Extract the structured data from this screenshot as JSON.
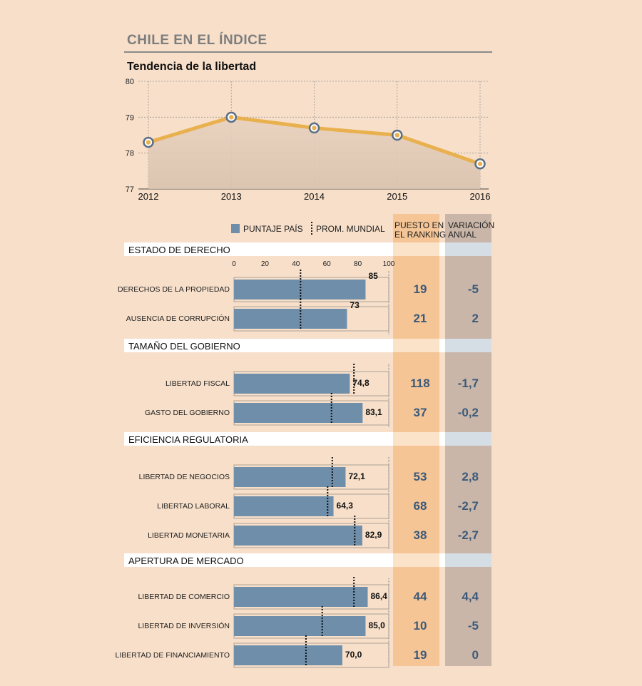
{
  "header": {
    "section_title": "CHILE EN EL ÍNDICE",
    "line_title": "Tendencia de la libertad"
  },
  "chart_data": [
    {
      "type": "line",
      "title": "Tendencia de la libertad",
      "x": [
        "2012",
        "2013",
        "2014",
        "2015",
        "2016"
      ],
      "series": [
        {
          "values": [
            78.3,
            79.0,
            78.7,
            78.5,
            77.7
          ]
        }
      ],
      "ylim": [
        77,
        80
      ],
      "yticks": [
        "77",
        "78",
        "79",
        "80"
      ],
      "grid": true,
      "colors": {
        "line": "#e9b04e",
        "marker_ring": "#5a6f86",
        "area_top": "#e8d2bf",
        "area_bottom": "#d8c2ae"
      }
    },
    {
      "type": "bar",
      "orientation": "horizontal",
      "xlim": [
        0,
        100
      ],
      "xticks": [
        "0",
        "20",
        "40",
        "60",
        "80",
        "100"
      ],
      "legend": {
        "country": "PUNTAJE PAÍS",
        "world": "PROM. MUNDIAL",
        "placement": "top"
      },
      "columns": {
        "ranking": [
          "PUESTO EN",
          "EL RANKING"
        ],
        "variation": [
          "VARIACIÓN",
          "ANUAL"
        ]
      },
      "colors": {
        "bar": "#6e8eaa",
        "ranking_col": "#f5c596",
        "variation_col": "#c9b6a8",
        "header_band": "#d5dde5",
        "value_text": "#3c5a7a"
      },
      "groups": [
        {
          "name": "ESTADO DE DERECHO",
          "items": [
            {
              "label": "DERECHOS DE LA PROPIEDAD",
              "value": 85,
              "value_label": "85",
              "world_avg": 43,
              "ranking": "19",
              "variation": "-5"
            },
            {
              "label": "AUSENCIA DE CORRUPCIÓN",
              "value": 73,
              "value_label": "73",
              "world_avg": 43,
              "ranking": "21",
              "variation": "2"
            }
          ]
        },
        {
          "name": "TAMAÑO DEL GOBIERNO",
          "items": [
            {
              "label": "LIBERTAD FISCAL",
              "value": 74.8,
              "value_label": "74,8",
              "world_avg": 77.5,
              "ranking": "118",
              "variation": "-1,7"
            },
            {
              "label": "GASTO DEL GOBIERNO",
              "value": 83.1,
              "value_label": "83,1",
              "world_avg": 63,
              "ranking": "37",
              "variation": "-0,2"
            }
          ]
        },
        {
          "name": "EFICIENCIA REGULATORIA",
          "items": [
            {
              "label": "LIBERTAD DE NEGOCIOS",
              "value": 72.1,
              "value_label": "72,1",
              "world_avg": 63.5,
              "ranking": "53",
              "variation": "2,8"
            },
            {
              "label": "LIBERTAD LABORAL",
              "value": 64.3,
              "value_label": "64,3",
              "world_avg": 60.5,
              "ranking": "68",
              "variation": "-2,7"
            },
            {
              "label": "LIBERTAD MONETARIA",
              "value": 82.9,
              "value_label": "82,9",
              "world_avg": 78,
              "ranking": "38",
              "variation": "-2,7"
            }
          ]
        },
        {
          "name": "APERTURA DE MERCADO",
          "items": [
            {
              "label": "LIBERTAD DE COMERCIO",
              "value": 86.4,
              "value_label": "86,4",
              "world_avg": 77.5,
              "ranking": "44",
              "variation": "4,4"
            },
            {
              "label": "LIBERTAD DE INVERSIÓN",
              "value": 85.0,
              "value_label": "85,0",
              "world_avg": 57,
              "ranking": "10",
              "variation": "-5"
            },
            {
              "label": "LIBERTAD DE FINANCIAMIENTO",
              "value": 70.0,
              "value_label": "70,0",
              "world_avg": 46.5,
              "ranking": "19",
              "variation": "0"
            }
          ]
        }
      ]
    }
  ]
}
